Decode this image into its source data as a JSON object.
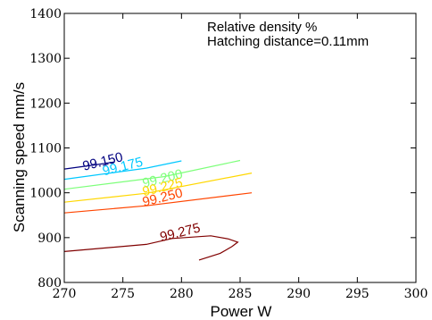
{
  "chart_data": {
    "type": "contour",
    "xlabel": "Power W",
    "ylabel": "Scanning speed mm/s",
    "xlim": [
      270,
      300
    ],
    "ylim": [
      800,
      1400
    ],
    "xticks": [
      "270",
      "275",
      "280",
      "285",
      "290",
      "295",
      "300"
    ],
    "yticks": [
      "800",
      "900",
      "1000",
      "1100",
      "1200",
      "1300",
      "1400"
    ],
    "annotations": [
      "Relative density %",
      "Hatching distance=0.11mm"
    ],
    "grid": false,
    "levels": [
      {
        "label": "99.150",
        "color": "#000080",
        "x": [
          270,
          272.8,
          274.3
        ],
        "y": [
          1053,
          1063,
          1069
        ],
        "label_at": [
          271.6,
          1057
        ]
      },
      {
        "label": "99.175",
        "color": "#00c8ff",
        "x": [
          270,
          277.0,
          280.0
        ],
        "y": [
          1030,
          1055,
          1071
        ],
        "label_at": [
          273.3,
          1046
        ]
      },
      {
        "label": "99.200",
        "color": "#7dff7a",
        "x": [
          270,
          278.5,
          285.0
        ],
        "y": [
          1008,
          1036,
          1072
        ],
        "label_at": [
          276.7,
          1019
        ]
      },
      {
        "label": "99.225",
        "color": "#ffd700",
        "x": [
          270,
          277.0,
          286.0
        ],
        "y": [
          979,
          999,
          1044
        ],
        "label_at": [
          276.7,
          1000
        ]
      },
      {
        "label": "99.250",
        "color": "#ff4500",
        "x": [
          270,
          277.0,
          286.0
        ],
        "y": [
          955,
          971,
          1000
        ],
        "label_at": [
          276.7,
          977
        ]
      },
      {
        "label": "99.275",
        "color": "#800000",
        "x": [
          270,
          277.0,
          279.2,
          282.5,
          284.0,
          284.8,
          284.3,
          283.3,
          281.5
        ],
        "y": [
          869,
          885,
          898,
          904,
          897,
          890,
          880,
          865,
          850
        ],
        "label_at": [
          278.2,
          899
        ]
      }
    ]
  }
}
